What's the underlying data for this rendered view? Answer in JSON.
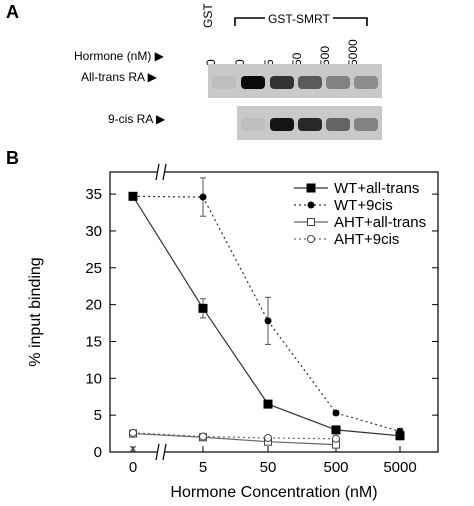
{
  "panel_a": {
    "label": "A",
    "hormone_label": "Hormone (nM) ▶",
    "gst_label": "GST",
    "gst_smrt_label": "GST-SMRT",
    "lanes": [
      "0",
      "0",
      "5",
      "50",
      "500",
      "5000"
    ],
    "rows": [
      {
        "label": "All-trans RA ▶",
        "intensities": [
          0.05,
          0.95,
          0.75,
          0.55,
          0.35,
          0.3
        ]
      },
      {
        "label": "9-cis RA ▶",
        "intensities": [
          null,
          0.05,
          0.9,
          0.8,
          0.5,
          0.35
        ]
      }
    ]
  },
  "panel_b": {
    "label": "B",
    "chart_data": {
      "type": "line",
      "xlabel": "Hormone Concentration (nM)",
      "ylabel": "% input binding",
      "categories": [
        "0",
        "5",
        "50",
        "500",
        "5000"
      ],
      "y_ticks": [
        0,
        5,
        10,
        15,
        20,
        25,
        30,
        35
      ],
      "ylim": [
        0,
        38
      ],
      "x_axis_break": true,
      "legend_position": "top-right",
      "series": [
        {
          "name": "WT+all-trans",
          "style": "solid",
          "marker": "filled-square",
          "values": [
            34.7,
            19.5,
            6.5,
            3.0,
            2.2
          ],
          "errors": [
            0,
            1.3,
            0.5,
            0.3,
            0.3
          ]
        },
        {
          "name": "WT+9cis",
          "style": "dotted",
          "marker": "filled-circle",
          "values": [
            34.7,
            34.6,
            17.8,
            5.3,
            2.8
          ],
          "errors": [
            0,
            2.6,
            3.2,
            0.3,
            0.4
          ]
        },
        {
          "name": "AHT+all-trans",
          "style": "solid",
          "marker": "open-square",
          "values": [
            2.5,
            2.0,
            1.4,
            1.0,
            null
          ],
          "errors": [
            0,
            0,
            0,
            0,
            0
          ]
        },
        {
          "name": "AHT+9cis",
          "style": "dotted",
          "marker": "open-circle",
          "values": [
            2.6,
            2.1,
            1.9,
            1.8,
            null
          ],
          "errors": [
            0,
            0,
            0,
            0,
            0
          ]
        }
      ],
      "extra_marker": {
        "x": "0",
        "y": 0.5,
        "symbol": "×"
      }
    }
  }
}
